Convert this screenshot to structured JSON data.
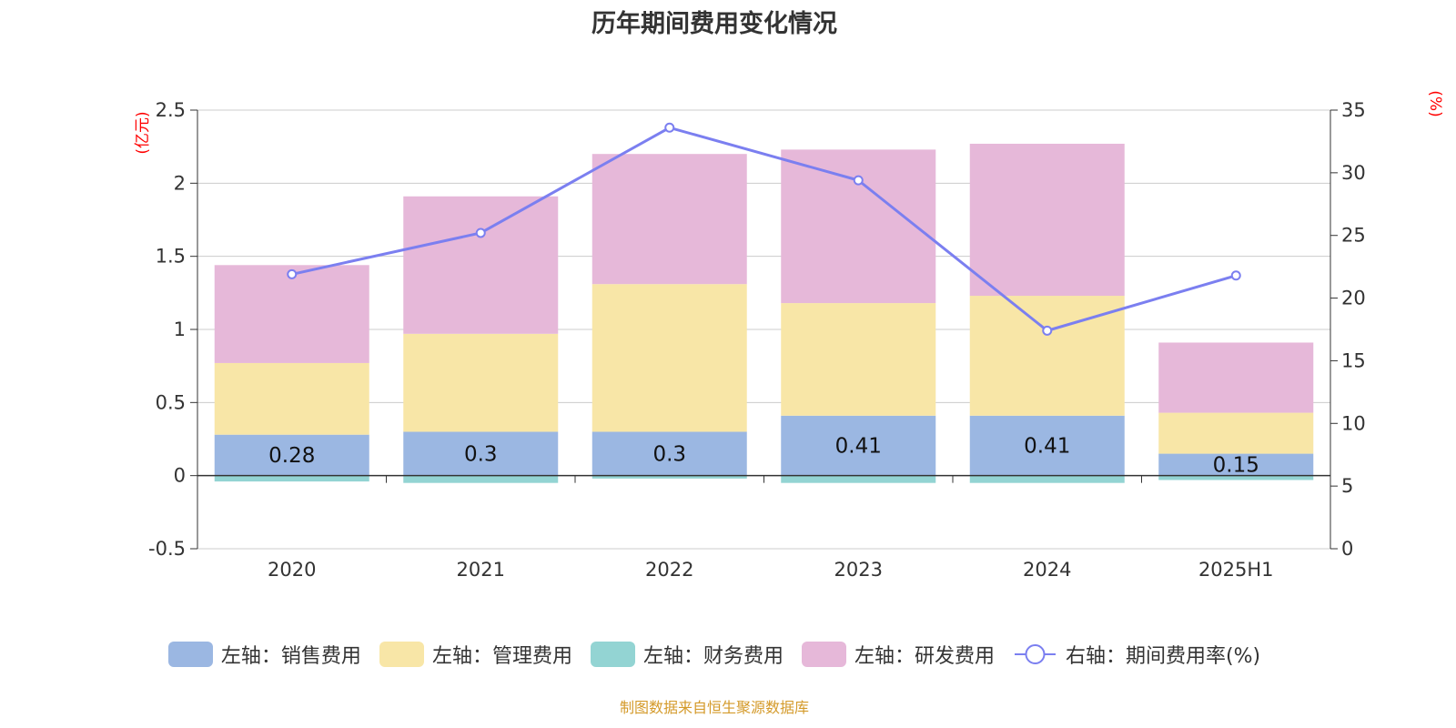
{
  "title": "历年期间费用变化情况",
  "source_note": "制图数据来自恒生聚源数据库",
  "colors": {
    "sales": "#9bb7e2",
    "admin": "#f8e6a7",
    "finance": "#93d4d3",
    "rd": "#e6b8d9",
    "rate": "#7b7ff0"
  },
  "chart_data": {
    "type": "bar",
    "stacked": true,
    "categories": [
      "2020",
      "2021",
      "2022",
      "2023",
      "2024",
      "2025H1"
    ],
    "left_axis": {
      "unit": "(亿元)",
      "ylim": [
        -0.5,
        2.5
      ],
      "ticks": [
        "2.5",
        "2",
        "1.5",
        "1",
        "0.5",
        "0",
        "-0.5"
      ]
    },
    "right_axis": {
      "unit": "(%)",
      "ylim": [
        0,
        35
      ],
      "ticks": [
        "35",
        "30",
        "25",
        "20",
        "15",
        "10",
        "5",
        "0"
      ]
    },
    "series": [
      {
        "name": "左轴：销售费用",
        "axis": "left",
        "type": "bar",
        "color_key": "sales",
        "values": [
          0.28,
          0.3,
          0.3,
          0.41,
          0.41,
          0.15
        ],
        "labels": [
          "0.28",
          "0.3",
          "0.3",
          "0.41",
          "0.41",
          "0.15"
        ]
      },
      {
        "name": "左轴：管理费用",
        "axis": "left",
        "type": "bar",
        "color_key": "admin",
        "values": [
          0.49,
          0.67,
          1.01,
          0.77,
          0.82,
          0.28
        ]
      },
      {
        "name": "左轴：财务费用",
        "axis": "left",
        "type": "bar",
        "color_key": "finance",
        "values": [
          -0.04,
          -0.05,
          -0.02,
          -0.05,
          -0.05,
          -0.03
        ]
      },
      {
        "name": "左轴：研发费用",
        "axis": "left",
        "type": "bar",
        "color_key": "rd",
        "values": [
          0.67,
          0.94,
          0.89,
          1.05,
          1.04,
          0.48
        ]
      },
      {
        "name": "右轴：期间费用率(%)",
        "axis": "right",
        "type": "line",
        "color_key": "rate",
        "values": [
          21.9,
          25.2,
          33.6,
          29.4,
          17.4,
          21.8
        ]
      }
    ],
    "grid": true,
    "legend_position": "bottom"
  }
}
